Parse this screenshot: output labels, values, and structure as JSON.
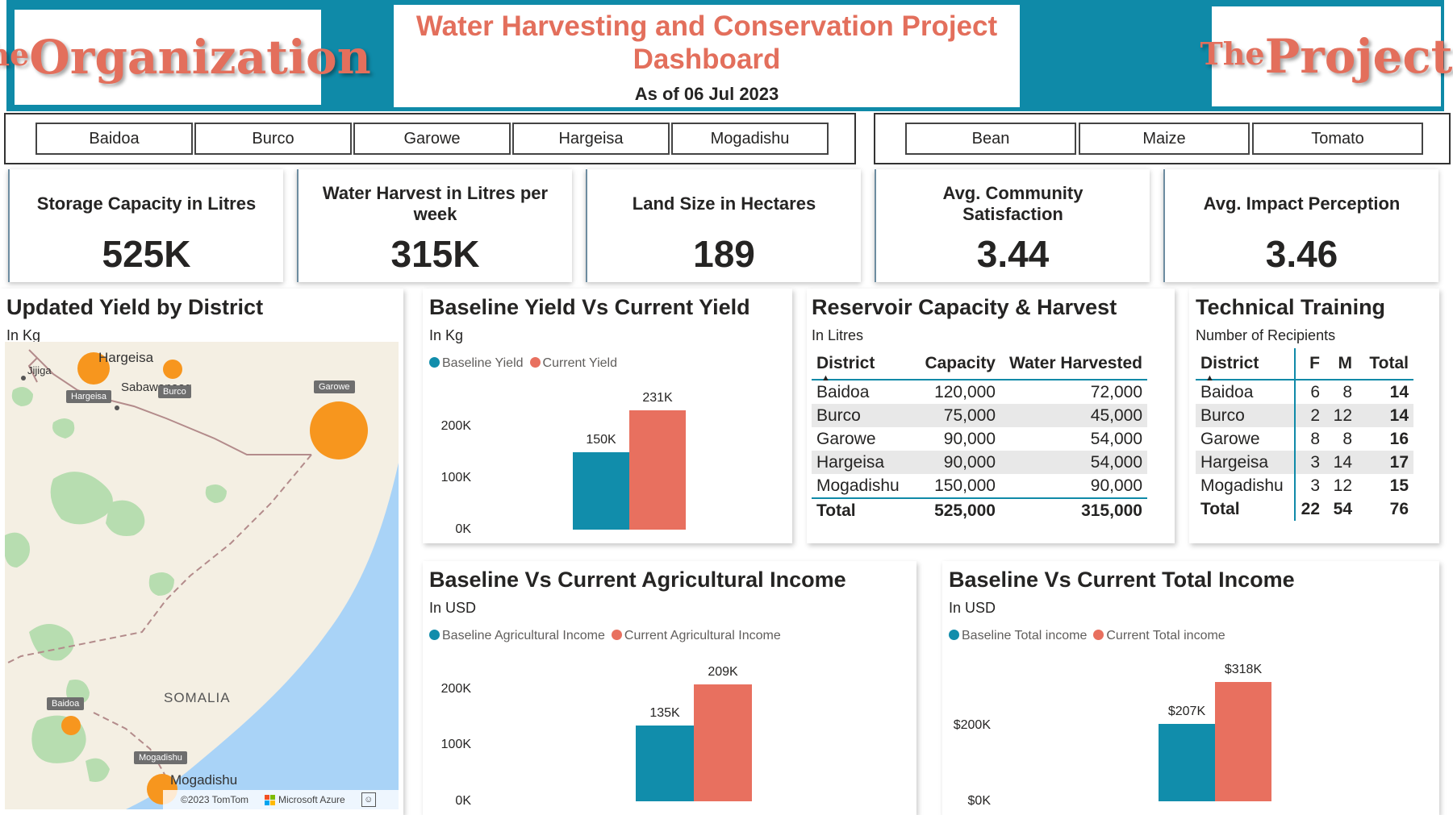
{
  "header": {
    "org_logo": {
      "small": "The",
      "large": "Organization"
    },
    "project_logo": {
      "small": "The",
      "large": "Project"
    },
    "title": "Water Harvesting and Conservation Project Dashboard",
    "as_of": "As of 06 Jul 2023"
  },
  "slicers": {
    "districts": [
      "Baidoa",
      "Burco",
      "Garowe",
      "Hargeisa",
      "Mogadishu"
    ],
    "crops": [
      "Bean",
      "Maize",
      "Tomato"
    ]
  },
  "kpis": [
    {
      "label": "Storage Capacity in Litres",
      "value": "525K"
    },
    {
      "label": "Water Harvest in Litres per week",
      "value": "315K"
    },
    {
      "label": "Land Size in Hectares",
      "value": "189"
    },
    {
      "label": "Avg. Community Satisfaction",
      "value": "3.44"
    },
    {
      "label": "Avg. Impact Perception",
      "value": "3.46"
    }
  ],
  "map": {
    "title": "Updated Yield by District",
    "subtitle": "In Kg",
    "place_labels": {
      "hargeisa": "Hargeisa",
      "jijiga": "Jijiga",
      "sabawanaag": "Sabawanaag",
      "somalia": "SOMALIA",
      "mogadishu": "Mogadishu"
    },
    "bubble_tags": {
      "hargeisa": "Hargeisa",
      "burco": "Burco",
      "garowe": "Garowe",
      "baidoa": "Baidoa",
      "mogadishu": "Mogadishu"
    },
    "attribution_tomtom": "©2023 TomTom",
    "attribution_azure": "Microsoft Azure",
    "colors": {
      "land": "#f4efe3",
      "water": "#a9d3f7",
      "green": "#b7ddb0",
      "bubble": "#f7961e"
    }
  },
  "yield_chart": {
    "title": "Baseline Yield Vs Current Yield",
    "subtitle": "In Kg",
    "legend": [
      "Baseline Yield",
      "Current Yield"
    ],
    "ticks": [
      "200K",
      "100K",
      "0K"
    ],
    "labels": [
      "150K",
      "231K"
    ]
  },
  "reservoir": {
    "title": "Reservoir Capacity & Harvest",
    "subtitle": "In Litres",
    "headers": [
      "District",
      "Capacity",
      "Water Harvested"
    ],
    "rows": [
      [
        "Baidoa",
        "120,000",
        "72,000"
      ],
      [
        "Burco",
        "75,000",
        "45,000"
      ],
      [
        "Garowe",
        "90,000",
        "54,000"
      ],
      [
        "Hargeisa",
        "90,000",
        "54,000"
      ],
      [
        "Mogadishu",
        "150,000",
        "90,000"
      ]
    ],
    "total": [
      "Total",
      "525,000",
      "315,000"
    ]
  },
  "training": {
    "title": "Technical Training",
    "subtitle": "Number of Recipients",
    "headers": [
      "District",
      "F",
      "M",
      "Total"
    ],
    "rows": [
      [
        "Baidoa",
        "6",
        "8",
        "14"
      ],
      [
        "Burco",
        "2",
        "12",
        "14"
      ],
      [
        "Garowe",
        "8",
        "8",
        "16"
      ],
      [
        "Hargeisa",
        "3",
        "14",
        "17"
      ],
      [
        "Mogadishu",
        "3",
        "12",
        "15"
      ]
    ],
    "total": [
      "Total",
      "22",
      "54",
      "76"
    ]
  },
  "ag_income_chart": {
    "title": "Baseline Vs Current Agricultural Income",
    "subtitle": "In USD",
    "legend": [
      "Baseline Agricultural Income",
      "Current Agricultural Income"
    ],
    "ticks": [
      "200K",
      "100K",
      "0K"
    ],
    "labels": [
      "135K",
      "209K"
    ]
  },
  "total_income_chart": {
    "title": "Baseline Vs Current Total Income",
    "subtitle": "In USD",
    "legend": [
      "Baseline Total income",
      "Current Total income"
    ],
    "ticks": [
      "$200K",
      "$0K"
    ],
    "labels": [
      "$207K",
      "$318K"
    ]
  },
  "chart_data": [
    {
      "type": "bar",
      "categories": [
        "Baseline Yield",
        "Current Yield"
      ],
      "values": [
        150000,
        231000
      ],
      "title": "Baseline Yield Vs Current Yield",
      "ylabel": "In Kg",
      "ylim": [
        0,
        240000
      ],
      "ticks": [
        0,
        100000,
        200000
      ],
      "colors": [
        "#118dab",
        "#e8705f"
      ]
    },
    {
      "type": "bar",
      "categories": [
        "Baseline Agricultural Income",
        "Current Agricultural Income"
      ],
      "values": [
        135000,
        209000
      ],
      "title": "Baseline Vs Current Agricultural Income",
      "ylabel": "In USD",
      "ylim": [
        0,
        220000
      ],
      "ticks": [
        0,
        100000,
        200000
      ],
      "colors": [
        "#118dab",
        "#e8705f"
      ]
    },
    {
      "type": "bar",
      "categories": [
        "Baseline Total income",
        "Current Total income"
      ],
      "values": [
        207000,
        318000
      ],
      "title": "Baseline Vs Current Total Income",
      "ylabel": "In USD",
      "ylim": [
        0,
        330000
      ],
      "ticks": [
        0,
        200000
      ],
      "colors": [
        "#118dab",
        "#e8705f"
      ]
    }
  ]
}
